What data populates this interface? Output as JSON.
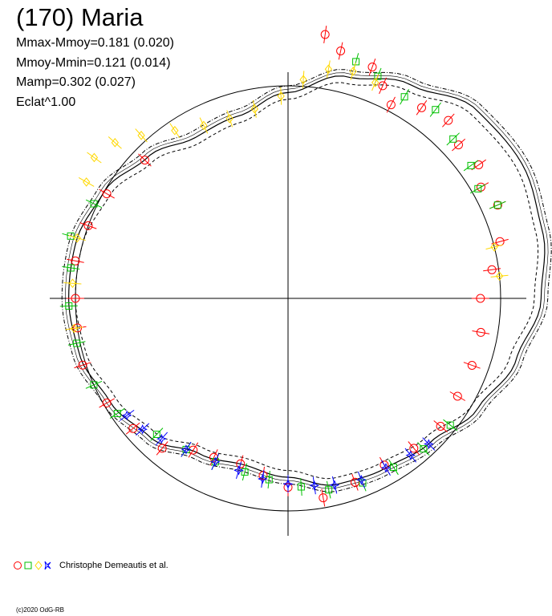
{
  "header": {
    "title": "(170) Maria",
    "stats": [
      "Mmax-Mmoy=0.181 (0.020)",
      "Mmoy-Mmin=0.121 (0.014)",
      "Mamp=0.302 (0.027)",
      "Eclat^1.00"
    ]
  },
  "legend": {
    "label": "Christophe Demeautis et al.",
    "markers": [
      {
        "shape": "circle",
        "color": "#ff0000"
      },
      {
        "shape": "square",
        "color": "#00c000"
      },
      {
        "shape": "diamond",
        "color": "#ffd800"
      },
      {
        "shape": "star",
        "color": "#0000ff"
      }
    ]
  },
  "footer": {
    "copyright": "(c)2020 OdG-RB"
  },
  "chart_data": {
    "type": "polar lightcurve",
    "title": "(170) Maria",
    "period_phase_range": [
      0,
      1
    ],
    "reference_circle_magnitude": 0.0,
    "magnitude_scale_note": "radius increases with brightness",
    "fit_curve": {
      "harmonics_phase_deg_vs_mag": [
        [
          0,
          -0.02
        ],
        [
          15,
          0.05
        ],
        [
          30,
          0.1
        ],
        [
          45,
          0.16
        ],
        [
          60,
          0.17
        ],
        [
          75,
          0.15
        ],
        [
          90,
          0.12
        ],
        [
          105,
          0.07
        ],
        [
          120,
          0.02
        ],
        [
          135,
          -0.03
        ],
        [
          150,
          -0.05
        ],
        [
          165,
          -0.06
        ],
        [
          180,
          -0.1
        ],
        [
          195,
          -0.12
        ],
        [
          210,
          -0.1
        ],
        [
          225,
          -0.05
        ],
        [
          240,
          -0.02
        ],
        [
          255,
          0.01
        ],
        [
          270,
          0.02
        ],
        [
          285,
          0.02
        ],
        [
          300,
          0.0
        ],
        [
          315,
          -0.04
        ],
        [
          330,
          -0.08
        ],
        [
          345,
          -0.07
        ],
        [
          360,
          -0.02
        ]
      ],
      "uncertainty_band": 0.02
    },
    "series": [
      {
        "name": "circle",
        "color": "#ff0000",
        "points_phase_deg_mag": [
          [
            8,
            0.16
          ],
          [
            12,
            0.12
          ],
          [
            20,
            0.1
          ],
          [
            24,
            0.06
          ],
          [
            28,
            0.02
          ],
          [
            35,
            0.06
          ],
          [
            42,
            0.08
          ],
          [
            48,
            0.05
          ],
          [
            55,
            0.06
          ],
          [
            60,
            0.03
          ],
          [
            66,
            0.05
          ],
          [
            75,
            0.02
          ],
          [
            82,
            -0.02
          ],
          [
            90,
            -0.06
          ],
          [
            100,
            -0.05
          ],
          [
            110,
            -0.05
          ],
          [
            120,
            -0.05
          ],
          [
            130,
            -0.04
          ],
          [
            140,
            -0.05
          ],
          [
            150,
            -0.06
          ],
          [
            160,
            -0.05
          ],
          [
            170,
            -0.03
          ],
          [
            180,
            -0.07
          ],
          [
            188,
            -0.1
          ],
          [
            196,
            -0.12
          ],
          [
            205,
            -0.11
          ],
          [
            212,
            -0.1
          ],
          [
            220,
            -0.05
          ],
          [
            230,
            -0.03
          ],
          [
            240,
            -0.01
          ],
          [
            252,
            0.01
          ],
          [
            262,
            0.0
          ],
          [
            270,
            0.0
          ],
          [
            280,
            0.01
          ],
          [
            290,
            0.0
          ],
          [
            300,
            -0.01
          ],
          [
            314,
            -0.04
          ]
        ]
      },
      {
        "name": "square",
        "color": "#00c000",
        "points_phase_deg_mag": [
          [
            16,
            0.1
          ],
          [
            22,
            0.08
          ],
          [
            30,
            0.06
          ],
          [
            38,
            0.08
          ],
          [
            46,
            0.05
          ],
          [
            54,
            0.04
          ],
          [
            60,
            0.02
          ],
          [
            66,
            0.05
          ],
          [
            128,
            -0.02
          ],
          [
            138,
            -0.03
          ],
          [
            148,
            -0.04
          ],
          [
            158,
            -0.04
          ],
          [
            168,
            -0.05
          ],
          [
            176,
            -0.07
          ],
          [
            186,
            -0.09
          ],
          [
            194,
            -0.1
          ],
          [
            204,
            -0.1
          ],
          [
            214,
            -0.09
          ],
          [
            224,
            -0.07
          ],
          [
            236,
            -0.02
          ],
          [
            246,
            0.0
          ],
          [
            258,
            0.01
          ],
          [
            268,
            0.02
          ],
          [
            278,
            0.02
          ],
          [
            286,
            0.04
          ],
          [
            296,
            0.01
          ]
        ]
      },
      {
        "name": "diamond",
        "color": "#ffd800",
        "points_phase_deg_mag": [
          [
            300,
            0.06
          ],
          [
            306,
            0.08
          ],
          [
            312,
            0.06
          ],
          [
            318,
            0.02
          ],
          [
            326,
            -0.03
          ],
          [
            334,
            -0.06
          ],
          [
            342,
            -0.07
          ],
          [
            350,
            -0.06
          ],
          [
            358,
            -0.03
          ],
          [
            4,
            0.02
          ],
          [
            10,
            0.06
          ],
          [
            16,
            0.07
          ],
          [
            22,
            0.06
          ],
          [
            76,
            0.0
          ],
          [
            84,
            0.0
          ],
          [
            262,
            0.01
          ],
          [
            274,
            0.01
          ],
          [
            286,
            0.02
          ]
        ]
      },
      {
        "name": "star",
        "color": "#0000ff",
        "points_phase_deg_mag": [
          [
            136,
            -0.03
          ],
          [
            142,
            -0.04
          ],
          [
            150,
            -0.05
          ],
          [
            158,
            -0.05
          ],
          [
            166,
            -0.06
          ],
          [
            172,
            -0.07
          ],
          [
            180,
            -0.08
          ],
          [
            188,
            -0.09
          ],
          [
            196,
            -0.1
          ],
          [
            204,
            -0.1
          ],
          [
            214,
            -0.09
          ],
          [
            222,
            -0.07
          ],
          [
            228,
            -0.05
          ],
          [
            234,
            -0.04
          ]
        ]
      }
    ]
  }
}
